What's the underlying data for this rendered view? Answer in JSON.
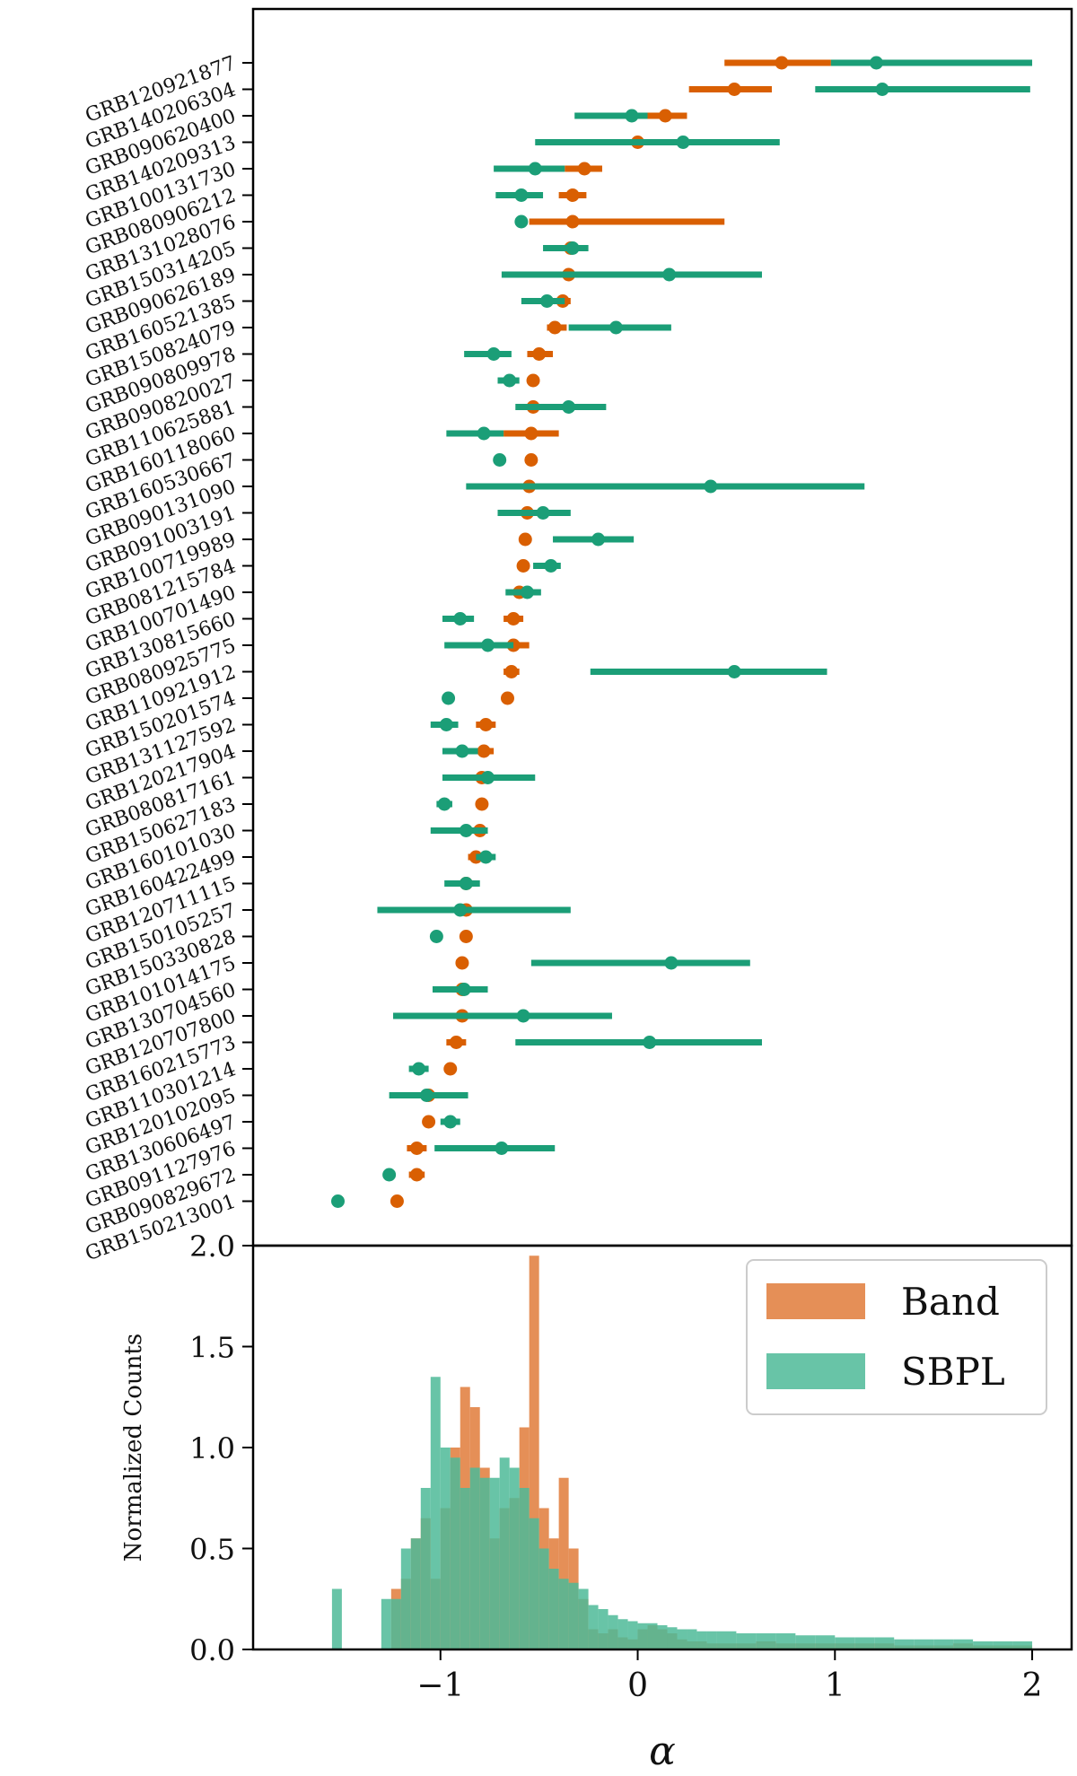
{
  "colors": {
    "band": "#d95f02",
    "sbpl": "#1b9e77",
    "band_hist": "#e07b39",
    "sbpl_hist": "#4dba98",
    "frame": "#000000"
  },
  "chart_data": [
    {
      "type": "errorbar",
      "title": "",
      "xlabel": "",
      "ylabel": "",
      "xlim": [
        -1.95,
        2.2
      ],
      "series": [
        {
          "name": "Band",
          "points": [
            {
              "grb": "GRB120921877",
              "value": 0.73,
              "lo": 0.44,
              "hi": 0.98
            },
            {
              "grb": "GRB140206304",
              "value": 0.49,
              "lo": 0.26,
              "hi": 0.68
            },
            {
              "grb": "GRB090620400",
              "value": 0.14,
              "lo": 0.03,
              "hi": 0.25
            },
            {
              "grb": "GRB140209313",
              "value": 0.0,
              "lo": -0.13,
              "hi": 0.15
            },
            {
              "grb": "GRB100131730",
              "value": -0.27,
              "lo": -0.37,
              "hi": -0.18
            },
            {
              "grb": "GRB080906212",
              "value": -0.33,
              "lo": -0.4,
              "hi": -0.26
            },
            {
              "grb": "GRB131028076",
              "value": -0.33,
              "lo": -0.55,
              "hi": 0.44
            },
            {
              "grb": "GRB150314205",
              "value": -0.34,
              "lo": -0.38,
              "hi": -0.3
            },
            {
              "grb": "GRB090626189",
              "value": -0.35,
              "lo": -0.44,
              "hi": -0.26
            },
            {
              "grb": "GRB160521385",
              "value": -0.38,
              "lo": -0.42,
              "hi": -0.34
            },
            {
              "grb": "GRB150824079",
              "value": -0.42,
              "lo": -0.46,
              "hi": -0.36
            },
            {
              "grb": "GRB090809978",
              "value": -0.5,
              "lo": -0.56,
              "hi": -0.43
            },
            {
              "grb": "GRB090820027",
              "value": -0.53,
              "lo": -0.56,
              "hi": -0.5
            },
            {
              "grb": "GRB110625881",
              "value": -0.53,
              "lo": -0.57,
              "hi": -0.5
            },
            {
              "grb": "GRB160118060",
              "value": -0.54,
              "lo": -0.68,
              "hi": -0.4
            },
            {
              "grb": "GRB160530667",
              "value": -0.54,
              "lo": -0.57,
              "hi": -0.51
            },
            {
              "grb": "GRB090131090",
              "value": -0.55,
              "lo": -0.7,
              "hi": -0.4
            },
            {
              "grb": "GRB091003191",
              "value": -0.56,
              "lo": -0.6,
              "hi": -0.51
            },
            {
              "grb": "GRB100719989",
              "value": -0.57,
              "lo": -0.6,
              "hi": -0.54
            },
            {
              "grb": "GRB081215784",
              "value": -0.58,
              "lo": -0.61,
              "hi": -0.55
            },
            {
              "grb": "GRB100701490",
              "value": -0.6,
              "lo": -0.66,
              "hi": -0.55
            },
            {
              "grb": "GRB130815660",
              "value": -0.63,
              "lo": -0.68,
              "hi": -0.58
            },
            {
              "grb": "GRB080925775",
              "value": -0.63,
              "lo": -0.7,
              "hi": -0.55
            },
            {
              "grb": "GRB110921912",
              "value": -0.64,
              "lo": -0.68,
              "hi": -0.6
            },
            {
              "grb": "GRB150201574",
              "value": -0.66,
              "lo": -0.69,
              "hi": -0.63
            },
            {
              "grb": "GRB131127592",
              "value": -0.77,
              "lo": -0.82,
              "hi": -0.72
            },
            {
              "grb": "GRB120217904",
              "value": -0.78,
              "lo": -0.83,
              "hi": -0.73
            },
            {
              "grb": "GRB080817161",
              "value": -0.79,
              "lo": -0.85,
              "hi": -0.73
            },
            {
              "grb": "GRB150627183",
              "value": -0.79,
              "lo": -0.82,
              "hi": -0.76
            },
            {
              "grb": "GRB160101030",
              "value": -0.8,
              "lo": -0.85,
              "hi": -0.76
            },
            {
              "grb": "GRB160422499",
              "value": -0.82,
              "lo": -0.86,
              "hi": -0.79
            },
            {
              "grb": "GRB120711115",
              "value": -0.87,
              "lo": -0.91,
              "hi": -0.83
            },
            {
              "grb": "GRB150105257",
              "value": -0.87,
              "lo": -0.98,
              "hi": -0.75
            },
            {
              "grb": "GRB150330828",
              "value": -0.87,
              "lo": -0.9,
              "hi": -0.84
            },
            {
              "grb": "GRB101014175",
              "value": -0.89,
              "lo": -0.92,
              "hi": -0.86
            },
            {
              "grb": "GRB130704560",
              "value": -0.89,
              "lo": -0.94,
              "hi": -0.84
            },
            {
              "grb": "GRB120707800",
              "value": -0.89,
              "lo": -1.01,
              "hi": -0.78
            },
            {
              "grb": "GRB160215773",
              "value": -0.92,
              "lo": -0.97,
              "hi": -0.87
            },
            {
              "grb": "GRB110301214",
              "value": -0.95,
              "lo": -0.97,
              "hi": -0.93
            },
            {
              "grb": "GRB120102095",
              "value": -1.06,
              "lo": -1.11,
              "hi": -1.01
            },
            {
              "grb": "GRB130606497",
              "value": -1.06,
              "lo": -1.09,
              "hi": -1.03
            },
            {
              "grb": "GRB091127976",
              "value": -1.12,
              "lo": -1.17,
              "hi": -1.07
            },
            {
              "grb": "GRB090829672",
              "value": -1.12,
              "lo": -1.16,
              "hi": -1.08
            },
            {
              "grb": "GRB150213001",
              "value": -1.22,
              "lo": -1.25,
              "hi": -1.19
            }
          ]
        },
        {
          "name": "SBPL",
          "points": [
            {
              "grb": "GRB120921877",
              "value": 1.21,
              "lo": 0.98,
              "hi": 2.0
            },
            {
              "grb": "GRB140206304",
              "value": 1.24,
              "lo": 0.9,
              "hi": 1.99
            },
            {
              "grb": "GRB090620400",
              "value": -0.03,
              "lo": -0.32,
              "hi": 0.05
            },
            {
              "grb": "GRB140209313",
              "value": 0.23,
              "lo": -0.52,
              "hi": 0.72
            },
            {
              "grb": "GRB100131730",
              "value": -0.52,
              "lo": -0.73,
              "hi": -0.37
            },
            {
              "grb": "GRB080906212",
              "value": -0.59,
              "lo": -0.72,
              "hi": -0.48
            },
            {
              "grb": "GRB131028076",
              "value": -0.59,
              "lo": -0.62,
              "hi": -0.56
            },
            {
              "grb": "GRB150314205",
              "value": -0.33,
              "lo": -0.48,
              "hi": -0.25
            },
            {
              "grb": "GRB090626189",
              "value": 0.16,
              "lo": -0.69,
              "hi": 0.63
            },
            {
              "grb": "GRB160521385",
              "value": -0.46,
              "lo": -0.59,
              "hi": -0.37
            },
            {
              "grb": "GRB150824079",
              "value": -0.11,
              "lo": -0.35,
              "hi": 0.17
            },
            {
              "grb": "GRB090809978",
              "value": -0.73,
              "lo": -0.88,
              "hi": -0.64
            },
            {
              "grb": "GRB090820027",
              "value": -0.65,
              "lo": -0.71,
              "hi": -0.6
            },
            {
              "grb": "GRB110625881",
              "value": -0.35,
              "lo": -0.62,
              "hi": -0.16
            },
            {
              "grb": "GRB160118060",
              "value": -0.78,
              "lo": -0.97,
              "hi": -0.68
            },
            {
              "grb": "GRB160530667",
              "value": -0.7,
              "lo": -0.73,
              "hi": -0.67
            },
            {
              "grb": "GRB090131090",
              "value": 0.37,
              "lo": -0.87,
              "hi": 1.15
            },
            {
              "grb": "GRB091003191",
              "value": -0.48,
              "lo": -0.71,
              "hi": -0.34
            },
            {
              "grb": "GRB100719989",
              "value": -0.2,
              "lo": -0.43,
              "hi": -0.02
            },
            {
              "grb": "GRB081215784",
              "value": -0.44,
              "lo": -0.53,
              "hi": -0.39
            },
            {
              "grb": "GRB100701490",
              "value": -0.56,
              "lo": -0.67,
              "hi": -0.49
            },
            {
              "grb": "GRB130815660",
              "value": -0.9,
              "lo": -0.99,
              "hi": -0.83
            },
            {
              "grb": "GRB080925775",
              "value": -0.76,
              "lo": -0.98,
              "hi": -0.63
            },
            {
              "grb": "GRB110921912",
              "value": 0.49,
              "lo": -0.24,
              "hi": 0.96
            },
            {
              "grb": "GRB150201574",
              "value": -0.96,
              "lo": -0.99,
              "hi": -0.93
            },
            {
              "grb": "GRB131127592",
              "value": -0.97,
              "lo": -1.05,
              "hi": -0.91
            },
            {
              "grb": "GRB120217904",
              "value": -0.89,
              "lo": -0.99,
              "hi": -0.81
            },
            {
              "grb": "GRB080817161",
              "value": -0.76,
              "lo": -0.99,
              "hi": -0.52
            },
            {
              "grb": "GRB150627183",
              "value": -0.98,
              "lo": -1.02,
              "hi": -0.94
            },
            {
              "grb": "GRB160101030",
              "value": -0.87,
              "lo": -1.05,
              "hi": -0.76
            },
            {
              "grb": "GRB160422499",
              "value": -0.77,
              "lo": -0.82,
              "hi": -0.72
            },
            {
              "grb": "GRB120711115",
              "value": -0.87,
              "lo": -0.98,
              "hi": -0.8
            },
            {
              "grb": "GRB150105257",
              "value": -0.9,
              "lo": -1.32,
              "hi": -0.34
            },
            {
              "grb": "GRB150330828",
              "value": -1.02,
              "lo": -1.05,
              "hi": -0.99
            },
            {
              "grb": "GRB101014175",
              "value": 0.17,
              "lo": -0.54,
              "hi": 0.57
            },
            {
              "grb": "GRB130704560",
              "value": -0.88,
              "lo": -1.04,
              "hi": -0.76
            },
            {
              "grb": "GRB120707800",
              "value": -0.58,
              "lo": -1.24,
              "hi": -0.13
            },
            {
              "grb": "GRB160215773",
              "value": 0.06,
              "lo": -0.62,
              "hi": 0.63
            },
            {
              "grb": "GRB110301214",
              "value": -1.11,
              "lo": -1.16,
              "hi": -1.06
            },
            {
              "grb": "GRB120102095",
              "value": -1.07,
              "lo": -1.26,
              "hi": -0.86
            },
            {
              "grb": "GRB130606497",
              "value": -0.95,
              "lo": -1.0,
              "hi": -0.9
            },
            {
              "grb": "GRB091127976",
              "value": -0.69,
              "lo": -1.03,
              "hi": -0.42
            },
            {
              "grb": "GRB090829672",
              "value": -1.26,
              "lo": -1.29,
              "hi": -1.23
            },
            {
              "grb": "GRB150213001",
              "value": -1.52,
              "lo": -1.54,
              "hi": -1.5
            }
          ]
        }
      ]
    },
    {
      "type": "histogram",
      "title": "",
      "xlabel": "α",
      "ylabel": "Normalized Counts",
      "xlim": [
        -1.95,
        2.2
      ],
      "ylim": [
        0.0,
        2.0
      ],
      "xticks": [
        -1,
        0,
        1,
        2
      ],
      "xtick_labels": [
        "−1",
        "0",
        "1",
        "2"
      ],
      "yticks": [
        0.0,
        0.5,
        1.0,
        1.5,
        2.0
      ],
      "ytick_labels": [
        "0.0",
        "0.5",
        "1.0",
        "1.5",
        "2.0"
      ],
      "legend": {
        "position": "top-right",
        "entries": [
          "Band",
          "SBPL"
        ]
      },
      "bin_edges": [
        -1.55,
        -1.5,
        -1.45,
        -1.4,
        -1.35,
        -1.3,
        -1.25,
        -1.2,
        -1.15,
        -1.1,
        -1.05,
        -1.0,
        -0.95,
        -0.9,
        -0.85,
        -0.8,
        -0.75,
        -0.7,
        -0.65,
        -0.6,
        -0.55,
        -0.5,
        -0.45,
        -0.4,
        -0.35,
        -0.3,
        -0.25,
        -0.2,
        -0.15,
        -0.1,
        -0.05,
        0.0,
        0.05,
        0.1,
        0.15,
        0.2,
        0.25,
        0.3,
        0.35,
        0.4,
        0.5,
        0.6,
        0.7,
        0.8,
        0.9,
        1.0,
        1.1,
        1.2,
        1.3,
        1.4,
        1.5,
        1.6,
        1.7,
        1.8,
        1.9,
        2.0
      ],
      "series": [
        {
          "name": "Band",
          "counts": [
            0,
            0,
            0,
            0,
            0,
            0,
            0.3,
            0.35,
            0.55,
            0.65,
            0.35,
            0.7,
            1.0,
            1.3,
            1.2,
            0.9,
            0.55,
            0.7,
            0.75,
            1.1,
            1.95,
            0.7,
            0.55,
            0.85,
            0.5,
            0.25,
            0.1,
            0.08,
            0.1,
            0.06,
            0.05,
            0.1,
            0.12,
            0.1,
            0.08,
            0.05,
            0.04,
            0.04,
            0.03,
            0.03,
            0.03,
            0.04,
            0.03,
            0.03,
            0.03,
            0.03,
            0.03,
            0.03,
            0.02,
            0.02,
            0.02,
            0.03,
            0.02,
            0.02,
            0.02
          ]
        },
        {
          "name": "SBPL",
          "counts": [
            0.3,
            0,
            0,
            0,
            0,
            0.25,
            0.25,
            0.5,
            0.55,
            0.8,
            1.35,
            1.0,
            0.95,
            0.8,
            0.9,
            0.85,
            0.85,
            0.95,
            0.9,
            0.8,
            0.65,
            0.5,
            0.4,
            0.35,
            0.33,
            0.3,
            0.22,
            0.2,
            0.17,
            0.15,
            0.14,
            0.13,
            0.13,
            0.12,
            0.11,
            0.1,
            0.1,
            0.09,
            0.09,
            0.09,
            0.08,
            0.08,
            0.08,
            0.07,
            0.07,
            0.06,
            0.06,
            0.06,
            0.05,
            0.05,
            0.05,
            0.05,
            0.04,
            0.04,
            0.04
          ]
        }
      ]
    }
  ]
}
